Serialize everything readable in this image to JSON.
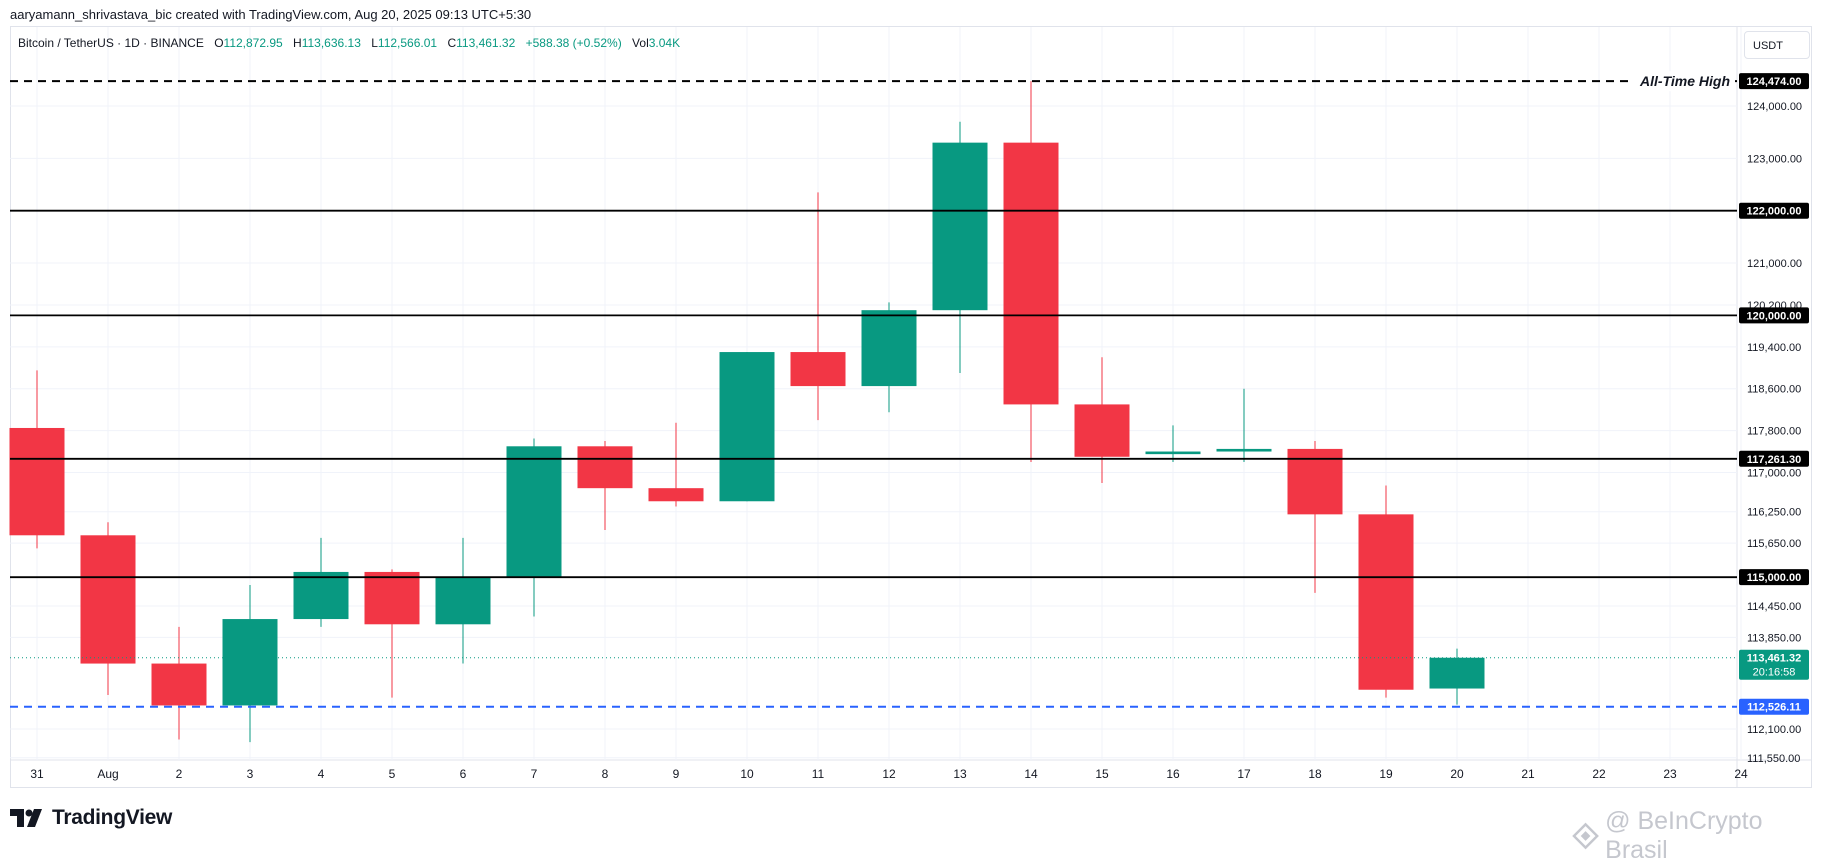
{
  "header": {
    "credit": "aaryamann_shrivastava_bic created with TradingView.com, Aug 20, 2025 09:13 UTC+5:30"
  },
  "legend": {
    "symbol": "Bitcoin / TetherUS · 1D · BINANCE",
    "o_label": "O",
    "o_value": "112,872.95",
    "h_label": "H",
    "h_value": "113,636.13",
    "l_label": "L",
    "l_value": "112,566.01",
    "c_label": "C",
    "c_value": "113,461.32",
    "change": "+588.38 (+0.52%)",
    "vol_label": "Vol",
    "vol_value": "3.04K"
  },
  "currency_button": "USDT",
  "footer": {
    "logo_text": "TradingView",
    "watermark": "@ BeInCrypto Brasil"
  },
  "colors": {
    "up": "#089981",
    "down": "#f23645",
    "level_line": "#000000",
    "support_line": "#2962ff",
    "grid": "#f0f3fa"
  },
  "chart_data": {
    "type": "candlestick",
    "x_labels": [
      "31",
      "Aug",
      "2",
      "3",
      "4",
      "5",
      "6",
      "7",
      "8",
      "9",
      "10",
      "11",
      "12",
      "13",
      "14",
      "15",
      "16",
      "17",
      "18",
      "19",
      "20",
      "21",
      "22",
      "23",
      "24"
    ],
    "y_tick_labels": [
      "124,000.00",
      "123,000.00",
      "121,000.00",
      "120,200.00",
      "119,400.00",
      "118,600.00",
      "117,800.00",
      "117,000.00",
      "116,250.00",
      "115,650.00",
      "114,450.00",
      "113,850.00",
      "112,100.00",
      "111,550.00"
    ],
    "ylim": [
      111500,
      124800
    ],
    "candles": [
      {
        "date": "Jul 31",
        "o": 117850,
        "h": 118950,
        "l": 115550,
        "c": 115800
      },
      {
        "date": "Aug 1",
        "o": 115800,
        "h": 116050,
        "l": 112750,
        "c": 113350
      },
      {
        "date": "Aug 2",
        "o": 113350,
        "h": 114050,
        "l": 111900,
        "c": 112550
      },
      {
        "date": "Aug 3",
        "o": 112550,
        "h": 114850,
        "l": 111850,
        "c": 114200
      },
      {
        "date": "Aug 4",
        "o": 114200,
        "h": 115750,
        "l": 114050,
        "c": 115100
      },
      {
        "date": "Aug 5",
        "o": 115100,
        "h": 115150,
        "l": 112700,
        "c": 114100
      },
      {
        "date": "Aug 6",
        "o": 114100,
        "h": 115750,
        "l": 113350,
        "c": 115000
      },
      {
        "date": "Aug 7",
        "o": 115000,
        "h": 117650,
        "l": 114250,
        "c": 117500
      },
      {
        "date": "Aug 8",
        "o": 117500,
        "h": 117600,
        "l": 115900,
        "c": 116700
      },
      {
        "date": "Aug 9",
        "o": 116700,
        "h": 117950,
        "l": 116350,
        "c": 116450
      },
      {
        "date": "Aug 10",
        "o": 116450,
        "h": 119300,
        "l": 116450,
        "c": 119300
      },
      {
        "date": "Aug 11",
        "o": 119300,
        "h": 122350,
        "l": 118000,
        "c": 118650
      },
      {
        "date": "Aug 12",
        "o": 118650,
        "h": 120250,
        "l": 118150,
        "c": 120100
      },
      {
        "date": "Aug 13",
        "o": 120100,
        "h": 123700,
        "l": 118900,
        "c": 123300
      },
      {
        "date": "Aug 14",
        "o": 123300,
        "h": 124474,
        "l": 117200,
        "c": 118300
      },
      {
        "date": "Aug 15",
        "o": 118300,
        "h": 119200,
        "l": 116800,
        "c": 117300
      },
      {
        "date": "Aug 16",
        "o": 117350,
        "h": 117900,
        "l": 117200,
        "c": 117400
      },
      {
        "date": "Aug 17",
        "o": 117400,
        "h": 118600,
        "l": 117200,
        "c": 117450
      },
      {
        "date": "Aug 18",
        "o": 117450,
        "h": 117600,
        "l": 114700,
        "c": 116200
      },
      {
        "date": "Aug 19",
        "o": 116200,
        "h": 116750,
        "l": 112700,
        "c": 112850
      },
      {
        "date": "Aug 20",
        "o": 112872.95,
        "h": 113636.13,
        "l": 112566.01,
        "c": 113461.32
      }
    ],
    "levels": [
      {
        "value": 124474,
        "label": "124,474.00",
        "style": "dashed",
        "color": "#000000",
        "annotation": "All-Time High"
      },
      {
        "value": 122000,
        "label": "122,000.00",
        "style": "solid",
        "color": "#000000"
      },
      {
        "value": 120000,
        "label": "120,000.00",
        "style": "solid",
        "color": "#000000"
      },
      {
        "value": 117261.3,
        "label": "117,261.30",
        "style": "solid",
        "color": "#000000"
      },
      {
        "value": 115000,
        "label": "115,000.00",
        "style": "solid",
        "color": "#000000"
      },
      {
        "value": 112526.11,
        "label": "112,526.11",
        "style": "dashed",
        "color": "#2962ff"
      }
    ],
    "last_price": {
      "value": 113461.32,
      "label": "113,461.32",
      "countdown": "20:16:58"
    },
    "grid": true
  }
}
